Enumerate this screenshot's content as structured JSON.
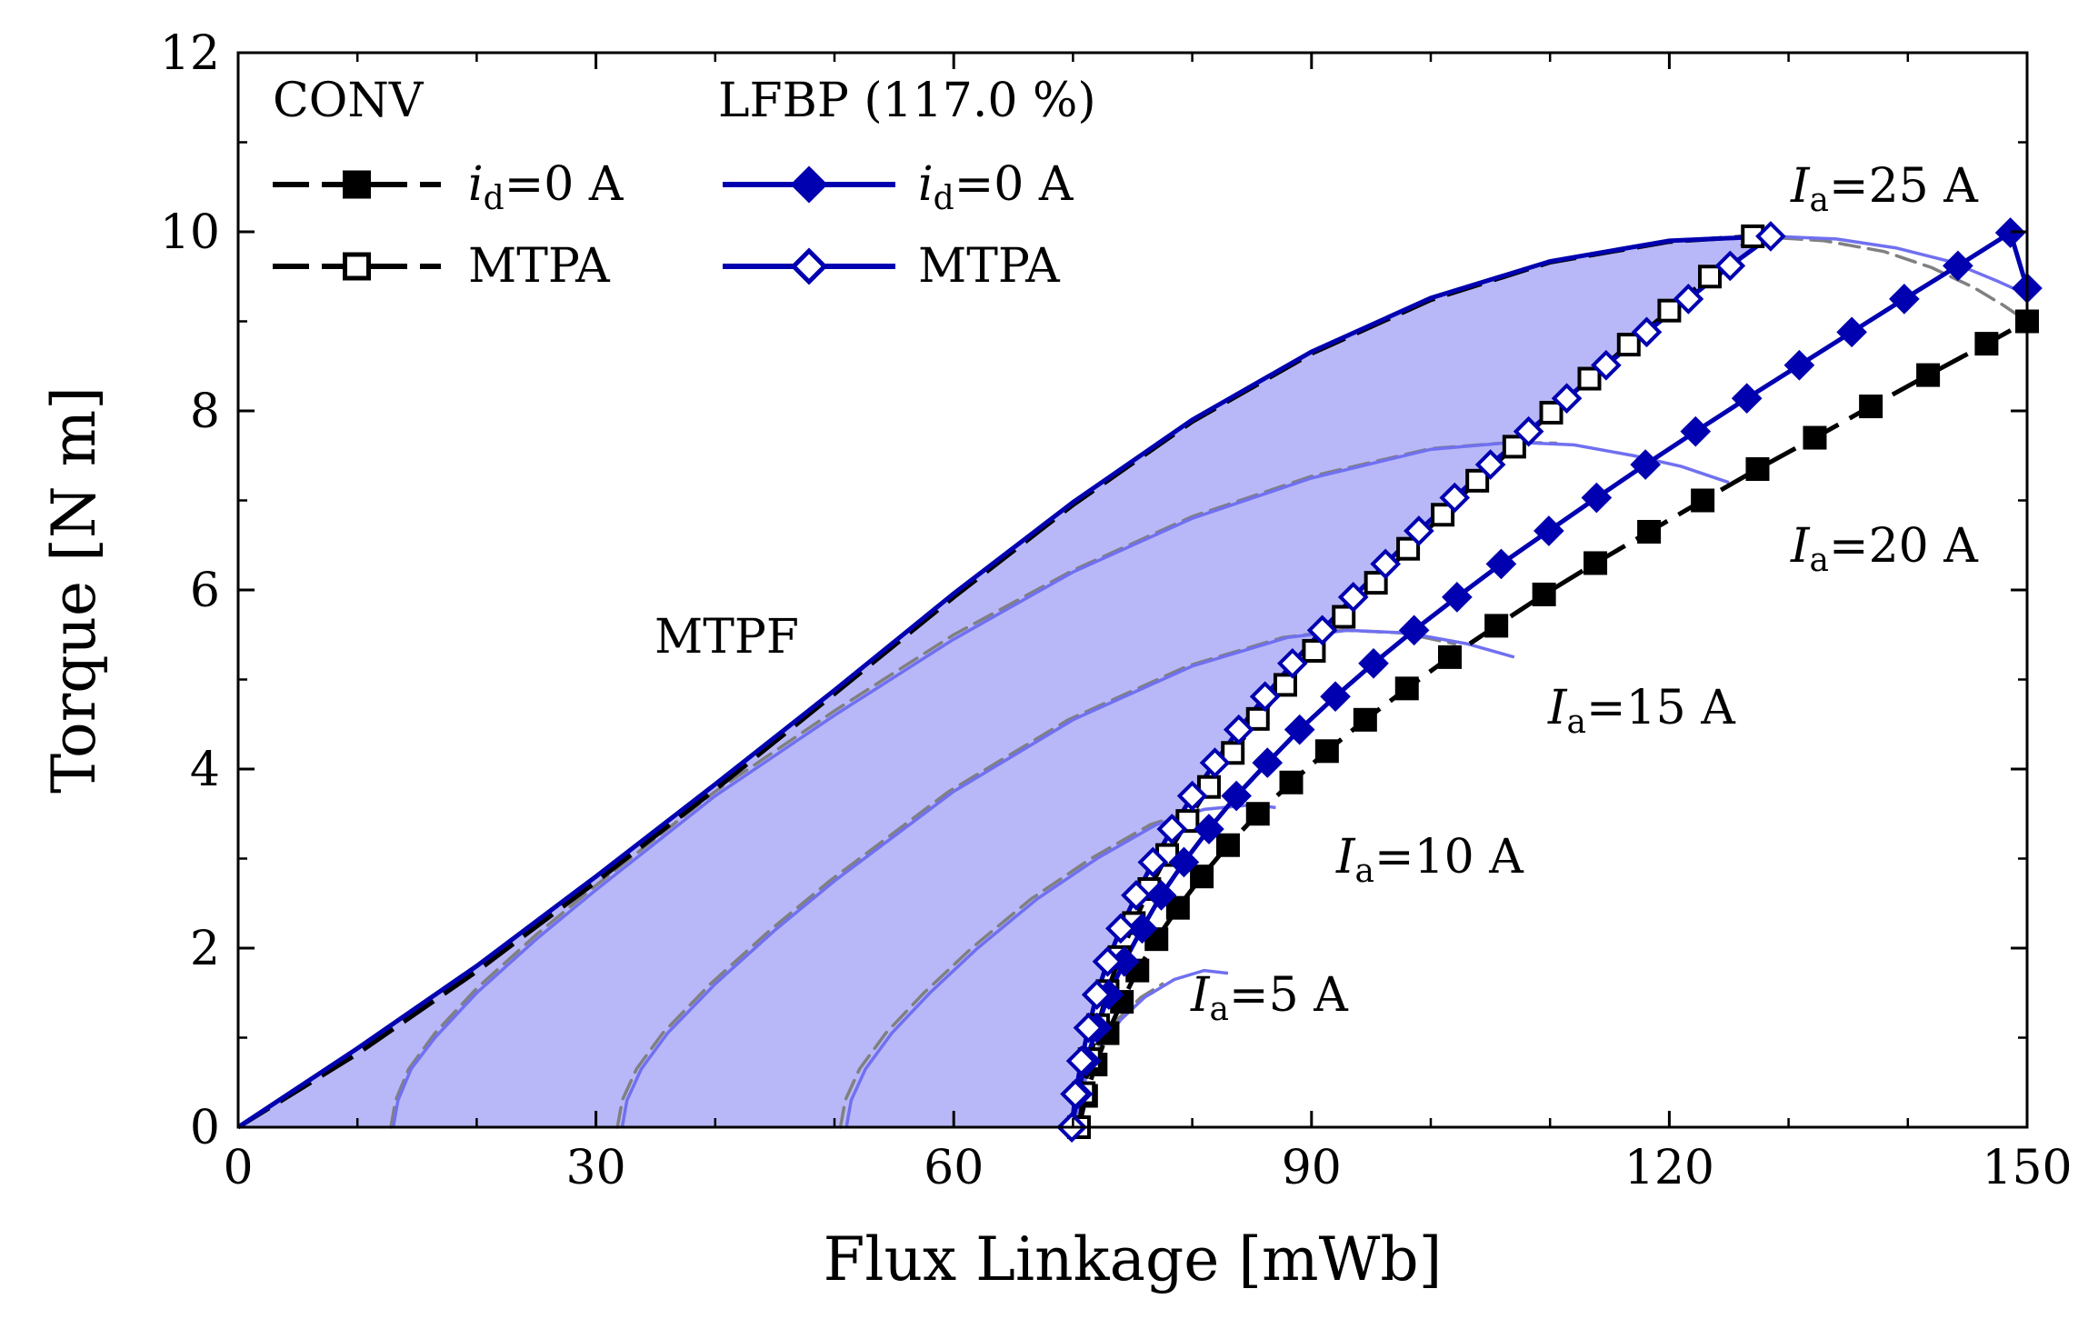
{
  "chart_data": {
    "type": "line",
    "xlabel": "Flux Linkage [mWb]",
    "ylabel": "Torque [N m]",
    "xlim": [
      0,
      150
    ],
    "ylim": [
      0,
      12
    ],
    "xticks": [
      "0",
      "30",
      "60",
      "90",
      "120",
      "150"
    ],
    "yticks": [
      "0",
      "2",
      "4",
      "6",
      "8",
      "10",
      "12"
    ],
    "grid": false,
    "legend": {
      "placement": "top-left",
      "headers": [
        "CONV",
        "LFBP (117.0 %)"
      ],
      "entries": [
        {
          "group": "CONV",
          "label_italic": "i",
          "label_sub": "d",
          "label_rest": "=0 A",
          "color": "#000000",
          "marker": "filled-square",
          "dash": true
        },
        {
          "group": "CONV",
          "label": "MTPA",
          "color": "#000000",
          "marker": "open-square",
          "dash": true
        },
        {
          "group": "LFBP (117.0 %)",
          "label_italic": "i",
          "label_sub": "d",
          "label_rest": "=0 A",
          "color": "#0000b0",
          "marker": "filled-diamond",
          "dash": false
        },
        {
          "group": "LFBP (117.0 %)",
          "label": "MTPA",
          "color": "#0000b0",
          "marker": "open-diamond",
          "dash": false
        }
      ]
    },
    "annotations": [
      {
        "text": "MTPF"
      },
      {
        "italic": "I",
        "sub": "a",
        "rest": "=25 A"
      },
      {
        "italic": "I",
        "sub": "a",
        "rest": "=20 A"
      },
      {
        "italic": "I",
        "sub": "a",
        "rest": "=15 A"
      },
      {
        "italic": "I",
        "sub": "a",
        "rest": "=10 A"
      },
      {
        "italic": "I",
        "sub": "a",
        "rest": "=5 A"
      }
    ],
    "colors": {
      "region_fill": "#b8b8f8",
      "lfbp_line": "#0000b0",
      "lfbp_contour": "#7070f0",
      "conv_line": "#000000",
      "conv_contour": "#808080"
    },
    "series": [
      {
        "name": "CONV id=0 A",
        "style": "conv-id0",
        "x": [
          70.5,
          71.1,
          71.9,
          72.9,
          74.1,
          75.4,
          77.0,
          78.8,
          80.8,
          83.0,
          85.5,
          88.3,
          91.3,
          94.5,
          98.0,
          101.6,
          105.5,
          109.5,
          113.8,
          118.3,
          122.8,
          127.4,
          132.2,
          136.9,
          141.7,
          146.6,
          150.0
        ],
        "y": [
          0.0,
          0.35,
          0.7,
          1.05,
          1.4,
          1.75,
          2.1,
          2.45,
          2.8,
          3.15,
          3.5,
          3.85,
          4.2,
          4.55,
          4.9,
          5.25,
          5.6,
          5.95,
          6.3,
          6.65,
          7.0,
          7.35,
          7.7,
          8.05,
          8.4,
          8.75,
          9.0
        ]
      },
      {
        "name": "LFBP id=0 A",
        "style": "lfbp-id0",
        "x": [
          69.9,
          70.4,
          71.1,
          72.0,
          73.0,
          74.3,
          75.8,
          77.4,
          79.3,
          81.4,
          83.7,
          86.3,
          89.0,
          92.0,
          95.2,
          98.6,
          102.2,
          105.9,
          109.9,
          113.9,
          118.0,
          122.2,
          126.5,
          130.9,
          135.3,
          139.7,
          144.2,
          148.6,
          150.0
        ],
        "y": [
          0.0,
          0.37,
          0.74,
          1.11,
          1.48,
          1.85,
          2.22,
          2.59,
          2.96,
          3.33,
          3.7,
          4.07,
          4.44,
          4.81,
          5.18,
          5.55,
          5.92,
          6.29,
          6.66,
          7.03,
          7.4,
          7.77,
          8.14,
          8.51,
          8.88,
          9.25,
          9.62,
          9.99,
          9.37
        ]
      },
      {
        "name": "CONV MTPA",
        "style": "conv-mtpa",
        "x": [
          70.5,
          70.9,
          71.4,
          72.1,
          72.9,
          73.9,
          75.1,
          76.4,
          77.9,
          79.6,
          81.4,
          83.4,
          85.5,
          87.8,
          90.2,
          92.7,
          95.4,
          98.1,
          101.0,
          103.9,
          107.0,
          110.1,
          113.3,
          116.6,
          120.0,
          123.4,
          127.0
        ],
        "y": [
          0.0,
          0.38,
          0.76,
          1.14,
          1.52,
          1.9,
          2.28,
          2.66,
          3.04,
          3.42,
          3.8,
          4.18,
          4.56,
          4.94,
          5.32,
          5.7,
          6.08,
          6.46,
          6.84,
          7.22,
          7.6,
          7.98,
          8.36,
          8.74,
          9.12,
          9.5,
          9.95
        ]
      },
      {
        "name": "LFBP MTPA",
        "style": "lfbp-mtpa",
        "x": [
          69.9,
          70.2,
          70.7,
          71.3,
          72.0,
          72.9,
          74.0,
          75.3,
          76.7,
          78.3,
          80.0,
          81.9,
          83.9,
          86.1,
          88.4,
          90.9,
          93.5,
          96.2,
          99.0,
          102.0,
          105.0,
          108.2,
          111.4,
          114.7,
          118.1,
          121.6,
          125.1,
          128.5
        ],
        "y": [
          0.0,
          0.37,
          0.74,
          1.11,
          1.48,
          1.85,
          2.22,
          2.59,
          2.96,
          3.33,
          3.7,
          4.07,
          4.44,
          4.81,
          5.18,
          5.55,
          5.92,
          6.29,
          6.66,
          7.03,
          7.4,
          7.77,
          8.14,
          8.51,
          8.88,
          9.25,
          9.62,
          9.95
        ]
      },
      {
        "name": "LFBP MTPF",
        "style": "lfbp-mtpf",
        "x": [
          0,
          10,
          20,
          30,
          40,
          50,
          60,
          70,
          80,
          90,
          100,
          110,
          120,
          128.5
        ],
        "y": [
          0,
          0.88,
          1.8,
          2.8,
          3.83,
          4.88,
          5.96,
          6.98,
          7.9,
          8.66,
          9.26,
          9.67,
          9.9,
          9.95
        ]
      },
      {
        "name": "CONV MTPF",
        "style": "conv-mtpf",
        "x": [
          0,
          10,
          20,
          30,
          40,
          50,
          60,
          70,
          80,
          90,
          100,
          110,
          120,
          127.0
        ],
        "y": [
          0,
          0.82,
          1.74,
          2.74,
          3.77,
          4.84,
          5.92,
          6.95,
          7.88,
          8.64,
          9.24,
          9.66,
          9.89,
          9.95
        ]
      },
      {
        "name": "LFBP Ia=25 A",
        "style": "lfbp-contour",
        "x": [
          128.5,
          134.0,
          139.0,
          143.5,
          147.5,
          150.0
        ],
        "y": [
          9.95,
          9.92,
          9.82,
          9.67,
          9.45,
          9.3
        ]
      },
      {
        "name": "CONV Ia=25 A",
        "style": "conv-contour",
        "x": [
          127.0,
          133.0,
          138.0,
          142.0,
          145.5,
          148.0,
          150.0
        ],
        "y": [
          9.95,
          9.9,
          9.78,
          9.6,
          9.38,
          9.18,
          9.0
        ]
      },
      {
        "name": "LFBP Ia=20 A",
        "style": "lfbp-contour",
        "x": [
          13.0,
          13.4,
          14.5,
          16.5,
          20.0,
          25.0,
          30.0,
          40.0,
          50.0,
          60.0,
          70.0,
          80.0,
          90.0,
          100.0,
          107.0,
          112.0,
          117.0,
          121.0,
          125.0
        ],
        "y": [
          0.0,
          0.3,
          0.65,
          1.0,
          1.5,
          2.1,
          2.65,
          3.7,
          4.6,
          5.45,
          6.2,
          6.8,
          7.25,
          7.57,
          7.65,
          7.62,
          7.5,
          7.38,
          7.2
        ]
      },
      {
        "name": "CONV Ia=20 A",
        "style": "conv-contour",
        "x": [
          12.8,
          13.2,
          14.3,
          16.5,
          20.0,
          25.0,
          30.0,
          40.0,
          50.0,
          60.0,
          70.0,
          80.0,
          90.0,
          100.0,
          107.0,
          110.5
        ],
        "y": [
          0.0,
          0.3,
          0.65,
          1.05,
          1.55,
          2.15,
          2.7,
          3.75,
          4.65,
          5.5,
          6.22,
          6.82,
          7.27,
          7.58,
          7.65,
          7.64
        ]
      },
      {
        "name": "LFBP Ia=15 A",
        "style": "lfbp-contour",
        "x": [
          32.2,
          32.6,
          33.8,
          36.0,
          40.0,
          45.0,
          50.0,
          60.0,
          70.0,
          80.0,
          88.0,
          93.0,
          98.0,
          103.0,
          107.0
        ],
        "y": [
          0.0,
          0.3,
          0.65,
          1.05,
          1.6,
          2.2,
          2.75,
          3.75,
          4.55,
          5.15,
          5.47,
          5.55,
          5.52,
          5.4,
          5.25
        ]
      },
      {
        "name": "CONV Ia=15 A",
        "style": "conv-contour",
        "x": [
          31.8,
          32.2,
          33.4,
          35.6,
          39.6,
          44.6,
          49.6,
          59.6,
          69.6,
          79.6,
          87.6,
          92.6,
          97.6,
          102.0
        ],
        "y": [
          0.0,
          0.3,
          0.65,
          1.05,
          1.6,
          2.2,
          2.75,
          3.75,
          4.55,
          5.15,
          5.47,
          5.55,
          5.52,
          5.4
        ]
      },
      {
        "name": "LFBP Ia=10 A",
        "style": "lfbp-contour",
        "x": [
          51.0,
          51.4,
          52.6,
          54.8,
          58.0,
          62.0,
          67.0,
          72.0,
          77.0,
          81.0,
          85.0,
          87.0
        ],
        "y": [
          0.0,
          0.3,
          0.65,
          1.05,
          1.5,
          2.0,
          2.55,
          3.0,
          3.38,
          3.55,
          3.6,
          3.57
        ]
      },
      {
        "name": "CONV Ia=10 A",
        "style": "conv-contour",
        "x": [
          50.5,
          50.9,
          52.1,
          54.3,
          57.5,
          61.5,
          66.5,
          71.5,
          76.5,
          80.5
        ],
        "y": [
          0.0,
          0.3,
          0.65,
          1.05,
          1.5,
          2.0,
          2.55,
          3.0,
          3.38,
          3.55
        ]
      },
      {
        "name": "LFBP Ia=5 A",
        "style": "lfbp-contour",
        "x": [
          70.2,
          70.5,
          71.2,
          72.4,
          74.0,
          76.0,
          78.5,
          81.0,
          83.0
        ],
        "y": [
          0.0,
          0.3,
          0.6,
          0.9,
          1.2,
          1.45,
          1.65,
          1.75,
          1.72
        ]
      },
      {
        "name": "CONV Ia=5 A",
        "style": "conv-contour",
        "x": [
          69.9,
          70.2,
          70.9,
          72.1,
          73.7,
          75.7,
          77.5
        ],
        "y": [
          0.0,
          0.3,
          0.6,
          0.9,
          1.2,
          1.45,
          1.6
        ]
      }
    ]
  }
}
